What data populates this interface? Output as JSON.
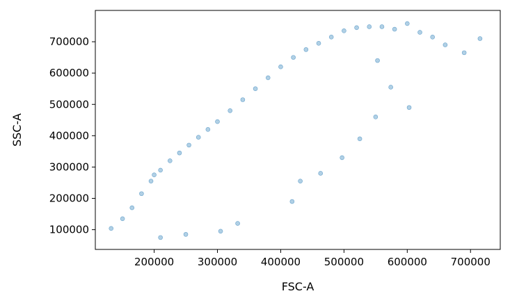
{
  "chart_data": {
    "type": "scatter",
    "xlabel": "FSC-A",
    "ylabel": "SSC-A",
    "xlim": [
      107000,
      747000
    ],
    "ylim": [
      37000,
      800000
    ],
    "xticks": [
      200000,
      300000,
      400000,
      500000,
      600000,
      700000
    ],
    "yticks": [
      100000,
      200000,
      300000,
      400000,
      500000,
      600000,
      700000
    ],
    "xtick_labels": [
      "200000",
      "300000",
      "400000",
      "500000",
      "600000",
      "700000"
    ],
    "ytick_labels": [
      "100000",
      "200000",
      "300000",
      "400000",
      "500000",
      "600000",
      "700000"
    ],
    "grid": false,
    "marker_color": "#1f77b4",
    "marker_opacity": 0.35,
    "series": [
      {
        "name": "",
        "x": [
          132000,
          150000,
          165000,
          180000,
          195000,
          200000,
          210000,
          225000,
          240000,
          255000,
          270000,
          285000,
          300000,
          320000,
          340000,
          360000,
          380000,
          400000,
          420000,
          440000,
          460000,
          480000,
          500000,
          520000,
          540000,
          560000,
          580000,
          600000,
          620000,
          640000,
          660000,
          690000,
          715000,
          553000,
          574000,
          603000,
          550000,
          525000,
          497000,
          463000,
          431000,
          418000,
          332000,
          305000,
          250000,
          210000
        ],
        "y": [
          104000,
          135000,
          170000,
          215000,
          255000,
          275000,
          290000,
          320000,
          345000,
          370000,
          395000,
          420000,
          445000,
          480000,
          515000,
          550000,
          585000,
          620000,
          650000,
          675000,
          695000,
          715000,
          735000,
          745000,
          748000,
          748000,
          740000,
          758000,
          730000,
          715000,
          690000,
          665000,
          710000,
          640000,
          555000,
          490000,
          460000,
          390000,
          330000,
          280000,
          255000,
          190000,
          120000,
          95000,
          85000,
          75000
        ]
      }
    ]
  }
}
